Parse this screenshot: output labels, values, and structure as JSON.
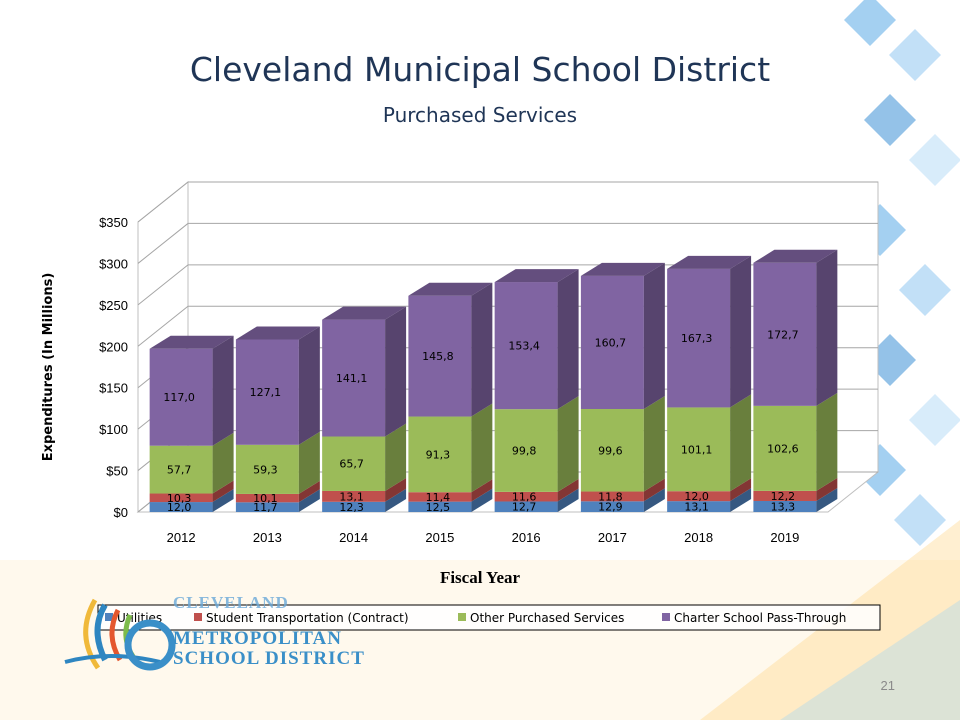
{
  "slide": {
    "page_number": "21",
    "logo": {
      "line1": "CLEVELAND",
      "line2": "METROPOLITAN",
      "line3": "SCHOOL DISTRICT"
    }
  },
  "chart_data": {
    "type": "bar",
    "stacked": true,
    "three_d": true,
    "title": "Cleveland Municipal School District",
    "subtitle": "Purchased Services",
    "xlabel": "Fiscal Year",
    "ylabel": "Expenditures (In Millions)",
    "ylim": [
      0,
      350
    ],
    "yticks": [
      "$0",
      "$50",
      "$100",
      "$150",
      "$200",
      "$250",
      "$300",
      "$350"
    ],
    "grid": true,
    "legend_position": "bottom",
    "categories": [
      "2012",
      "2013",
      "2014",
      "2015",
      "2016",
      "2017",
      "2018",
      "2019"
    ],
    "series": [
      {
        "name": "Utilities",
        "color": "#4f81bd",
        "values": [
          12.0,
          11.7,
          12.3,
          12.5,
          12.7,
          12.9,
          13.1,
          13.3
        ],
        "labels": [
          "12,0",
          "11,7",
          "12,3",
          "12,5",
          "12,7",
          "12,9",
          "13,1",
          "13,3"
        ]
      },
      {
        "name": "Student Transportation (Contract)",
        "color": "#c0504d",
        "values": [
          10.3,
          10.1,
          13.1,
          11.4,
          11.6,
          11.8,
          12.0,
          12.2
        ],
        "labels": [
          "10,3",
          "10,1",
          "13,1",
          "11,4",
          "11,6",
          "11,8",
          "12,0",
          "12,2"
        ]
      },
      {
        "name": "Other Purchased Services",
        "color": "#9bbb59",
        "values": [
          57.7,
          59.3,
          65.7,
          91.3,
          99.8,
          99.6,
          101.1,
          102.6
        ],
        "labels": [
          "57,7",
          "59,3",
          "65,7",
          "91,3",
          "99,8",
          "99,6",
          "101,1",
          "102,6"
        ]
      },
      {
        "name": "Charter School Pass-Through",
        "color": "#8064a2",
        "values": [
          117.0,
          127.1,
          141.1,
          145.8,
          153.4,
          160.7,
          167.3,
          172.7
        ],
        "labels": [
          "117,0",
          "127,1",
          "141,1",
          "145,8",
          "153,4",
          "160,7",
          "167,3",
          "172,7"
        ]
      }
    ]
  }
}
